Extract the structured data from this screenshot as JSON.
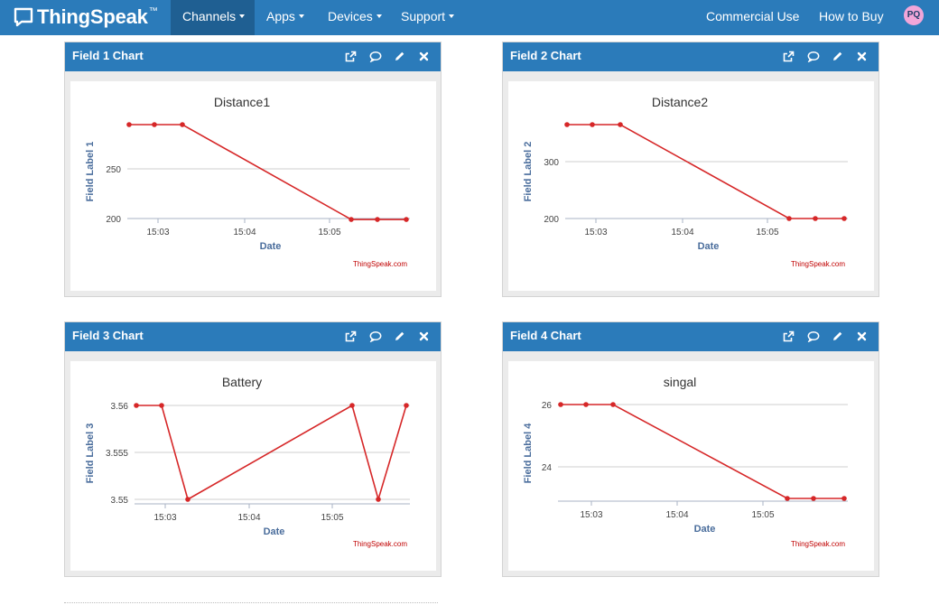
{
  "app": {
    "name": "ThingSpeak",
    "trademark": "™"
  },
  "nav": {
    "items": [
      {
        "label": "Channels",
        "dropdown": true,
        "active": true
      },
      {
        "label": "Apps",
        "dropdown": true,
        "active": false
      },
      {
        "label": "Devices",
        "dropdown": true,
        "active": false
      },
      {
        "label": "Support",
        "dropdown": true,
        "active": false
      }
    ],
    "right": [
      {
        "label": "Commercial Use"
      },
      {
        "label": "How to Buy"
      }
    ],
    "avatar_initials": "PQ"
  },
  "colors": {
    "navbar": "#2b7bba",
    "navbar_active": "#1f5f92",
    "line": "#d62728",
    "axis_title": "#4a6d9c",
    "credit": "#c00000"
  },
  "tool_icons": [
    "external-link-icon",
    "comment-icon",
    "pencil-icon",
    "close-icon"
  ],
  "charts": [
    {
      "panel_title": "Field 1 Chart",
      "credit": "ThingSpeak.com",
      "chart_data": {
        "type": "line",
        "title": "Distance1",
        "xlabel": "Date",
        "ylabel": "Field Label 1",
        "x_ticks": [
          "15:03",
          "15:04",
          "15:05"
        ],
        "y_ticks": [
          250,
          200
        ],
        "ylim": [
          200,
          298
        ],
        "grid": true,
        "series": [
          {
            "values": [
              298,
              298,
              298,
              199,
              199,
              199
            ]
          }
        ]
      }
    },
    {
      "panel_title": "Field 2 Chart",
      "credit": "ThingSpeak.com",
      "chart_data": {
        "type": "line",
        "title": "Distance2",
        "xlabel": "Date",
        "ylabel": "Field Label 2",
        "x_ticks": [
          "15:03",
          "15:04",
          "15:05"
        ],
        "y_ticks": [
          300,
          200
        ],
        "ylim": [
          200,
          364
        ],
        "grid": true,
        "series": [
          {
            "values": [
              363,
              363,
              363,
              198,
              198,
              198
            ]
          }
        ]
      }
    },
    {
      "panel_title": "Field 3 Chart",
      "credit": "ThingSpeak.com",
      "chart_data": {
        "type": "line",
        "title": "Battery",
        "xlabel": "Date",
        "ylabel": "Field Label 3",
        "x_ticks": [
          "15:03",
          "15:04",
          "15:05"
        ],
        "y_ticks": [
          "3.56",
          "3.555",
          "3.55"
        ],
        "ylim": [
          3.55,
          3.56
        ],
        "grid": true,
        "series": [
          {
            "values": [
              3.56,
              3.56,
              3.55,
              3.56,
              3.55,
              3.56
            ]
          }
        ]
      }
    },
    {
      "panel_title": "Field 4 Chart",
      "credit": "ThingSpeak.com",
      "chart_data": {
        "type": "line",
        "title": "singal",
        "xlabel": "Date",
        "ylabel": "Field Label 4",
        "x_ticks": [
          "15:03",
          "15:04",
          "15:05"
        ],
        "y_ticks": [
          26,
          24
        ],
        "ylim": [
          23,
          26
        ],
        "grid": true,
        "series": [
          {
            "values": [
              26,
              26,
              26,
              23,
              23,
              23
            ]
          }
        ]
      }
    }
  ]
}
